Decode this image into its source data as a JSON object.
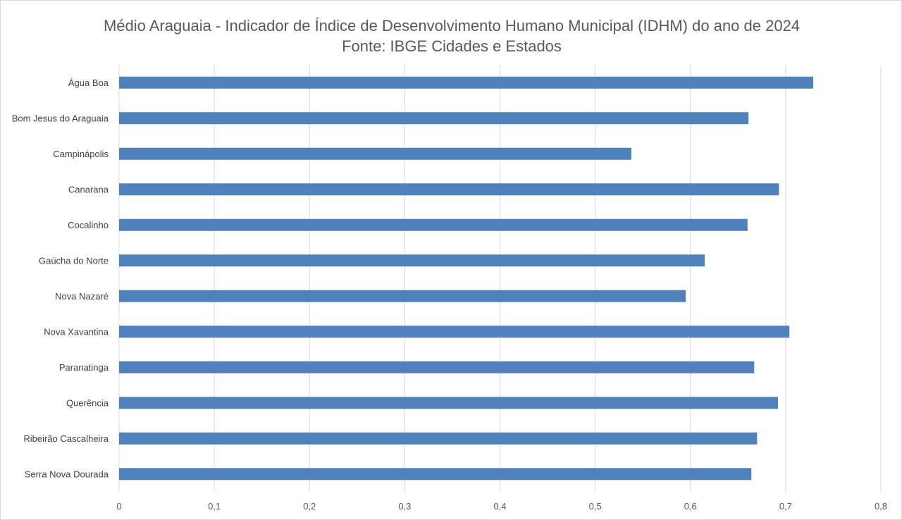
{
  "chart_data": {
    "type": "bar",
    "orientation": "horizontal",
    "title": "Médio Araguaia - Indicador de Índice de Desenvolvimento Humano Municipal (IDHM) do ano de 2024",
    "subtitle": "Fonte: IBGE Cidades e Estados",
    "xlabel": "",
    "ylabel": "",
    "categories": [
      "Água Boa",
      "Bom Jesus do Araguaia",
      "Campinápolis",
      "Canarana",
      "Cocalinho",
      "Gaúcha do Norte",
      "Nova Nazaré",
      "Nova Xavantina",
      "Paranatinga",
      "Querência",
      "Ribeirão Cascalheira",
      "Serra Nova Dourada"
    ],
    "values": [
      0.729,
      0.661,
      0.538,
      0.693,
      0.66,
      0.615,
      0.595,
      0.704,
      0.667,
      0.692,
      0.67,
      0.664
    ],
    "xlim": [
      0,
      0.8
    ],
    "ticks": [
      "0",
      "0,1",
      "0,2",
      "0,3",
      "0,4",
      "0,5",
      "0,6",
      "0,7",
      "0,8"
    ],
    "tick_values": [
      0,
      0.1,
      0.2,
      0.3,
      0.4,
      0.5,
      0.6,
      0.7,
      0.8
    ],
    "grid": true,
    "legend": "none",
    "colors": {
      "bar": "#4f81bd",
      "grid": "#d9d9d9",
      "text": "#595959"
    }
  }
}
